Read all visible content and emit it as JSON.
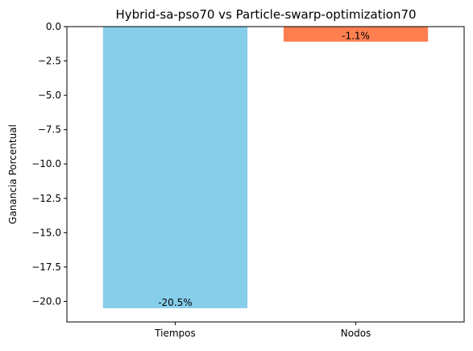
{
  "chart_data": {
    "type": "bar",
    "title": "Hybrid-sa-pso70 vs Particle-swarp-optimization70",
    "xlabel": "",
    "ylabel": "Ganancia Porcentual",
    "categories": [
      "Tiempos",
      "Nodos"
    ],
    "values": [
      -20.5,
      -1.1
    ],
    "bar_labels": [
      "-20.5%",
      "-1.1%"
    ],
    "colors": [
      "#87CEEB",
      "#FF7F50"
    ],
    "ylim": [
      -21.5,
      0.0
    ],
    "yticks": [
      0.0,
      -2.5,
      -5.0,
      -7.5,
      -10.0,
      -12.5,
      -15.0,
      -17.5,
      -20.0
    ],
    "ytick_labels": [
      "0.0",
      "−2.5",
      "−5.0",
      "−7.5",
      "−10.0",
      "−12.5",
      "−15.0",
      "−17.5",
      "−20.0"
    ],
    "grid": false,
    "legend": false
  }
}
